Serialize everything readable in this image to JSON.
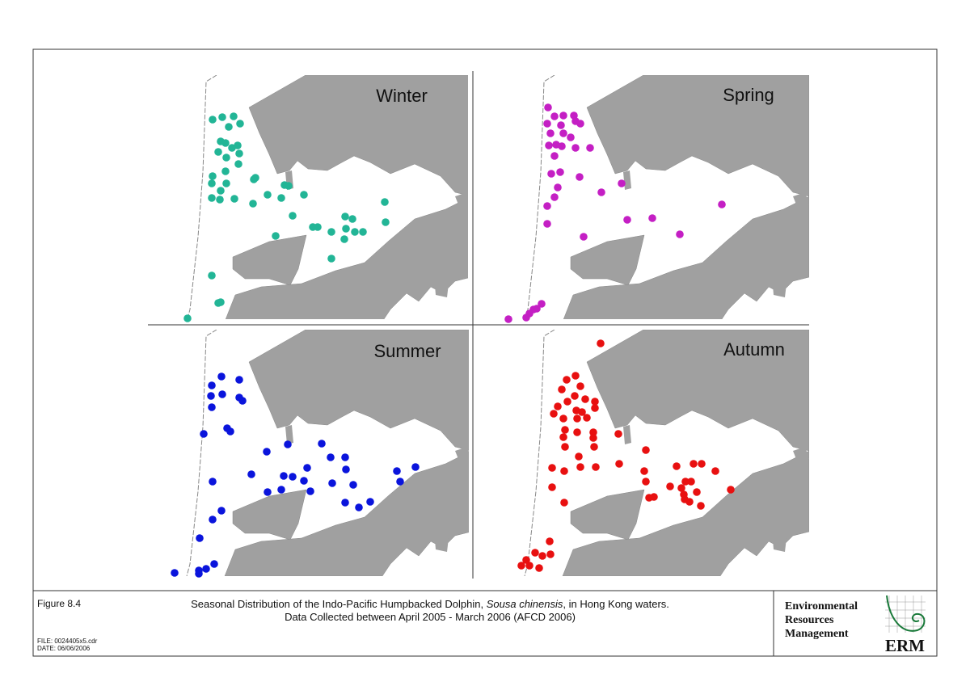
{
  "panels": [
    {
      "label": "Winter"
    },
    {
      "label": "Spring"
    },
    {
      "label": "Summer"
    },
    {
      "label": "Autumn"
    }
  ],
  "footer": {
    "figure": "Figure 8.4",
    "caption": {
      "before": "Seasonal Distribution of the Indo-Pacific Humpbacked Dolphin, ",
      "species": "Sousa chinensis",
      "after": ", in Hong Kong waters."
    },
    "caption_line2": "Data Collected between April 2005 - March 2006 (AFCD 2006)",
    "file": "FILE: 0024405x5.cdr",
    "date": "DATE: 06/06/2006"
  },
  "logo": {
    "lines": [
      "Environmental",
      "Resources",
      "Management"
    ],
    "abbr": "ERM"
  }
}
